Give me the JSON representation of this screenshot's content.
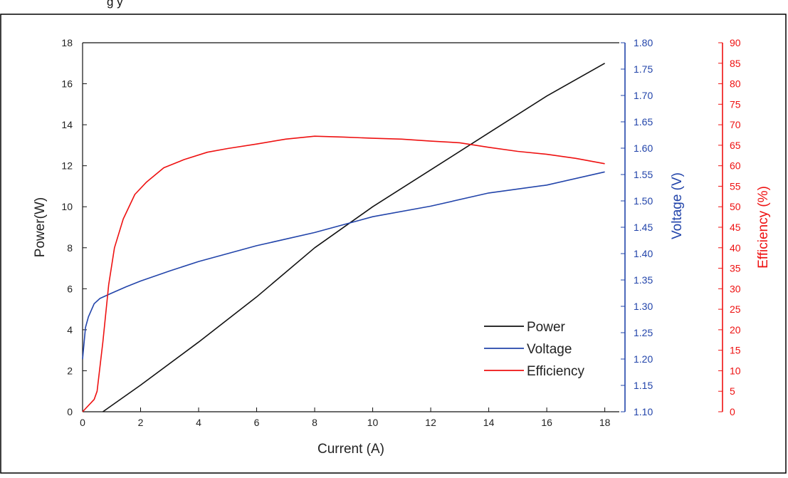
{
  "header_text": "g         y",
  "chart_data": {
    "type": "line",
    "title": "",
    "xlabel": "Current (A)",
    "xlim": [
      0,
      18.5
    ],
    "xticks": [
      0,
      2,
      4,
      6,
      8,
      10,
      12,
      14,
      16,
      18
    ],
    "axes": {
      "left": {
        "label": "Power(W)",
        "lim": [
          0,
          18
        ],
        "ticks": [
          0,
          2,
          4,
          6,
          8,
          10,
          12,
          14,
          16,
          18
        ],
        "color": "#111111"
      },
      "right1": {
        "label": "Voltage (V)",
        "lim": [
          1.1,
          1.8
        ],
        "ticks": [
          "1.10",
          "1.15",
          "1.20",
          "1.25",
          "1.30",
          "1.35",
          "1.40",
          "1.45",
          "1.50",
          "1.55",
          "1.60",
          "1.65",
          "1.70",
          "1.75",
          "1.80"
        ],
        "color": "#2244aa"
      },
      "right2": {
        "label": "Efficiency (%)",
        "lim": [
          0,
          90
        ],
        "ticks": [
          0,
          5,
          10,
          15,
          20,
          25,
          30,
          35,
          40,
          45,
          50,
          55,
          60,
          65,
          70,
          75,
          80,
          85,
          90
        ],
        "color": "#ee1111"
      }
    },
    "legend": {
      "position": "bottom-right"
    },
    "grid": false,
    "series": [
      {
        "name": "Power",
        "axis": "left",
        "color": "#111111",
        "x": [
          0.7,
          2,
          4,
          6,
          8,
          10,
          12,
          14,
          16,
          18
        ],
        "y": [
          0,
          1.3,
          3.4,
          5.6,
          8.0,
          10.0,
          11.8,
          13.6,
          15.4,
          17.0
        ]
      },
      {
        "name": "Voltage",
        "axis": "right1",
        "color": "#2244aa",
        "x": [
          0,
          0.1,
          0.2,
          0.4,
          0.6,
          1,
          1.5,
          2,
          3,
          4,
          5,
          6,
          8,
          10,
          12,
          14,
          16,
          18
        ],
        "y": [
          1.2,
          1.26,
          1.28,
          1.305,
          1.315,
          1.325,
          1.337,
          1.348,
          1.367,
          1.385,
          1.4,
          1.415,
          1.44,
          1.47,
          1.49,
          1.515,
          1.53,
          1.555
        ]
      },
      {
        "name": "Efficiency",
        "axis": "right2",
        "color": "#ee1111",
        "x": [
          0,
          0.4,
          0.5,
          0.7,
          0.9,
          1.1,
          1.4,
          1.8,
          2.2,
          2.8,
          3.5,
          4.3,
          5,
          6,
          7,
          8,
          9,
          10,
          11,
          12,
          13,
          14,
          15,
          16,
          17,
          18
        ],
        "y": [
          0,
          3,
          5,
          17,
          31,
          40,
          47,
          53,
          56,
          59.5,
          61.5,
          63.3,
          64.2,
          65.3,
          66.5,
          67.2,
          67.0,
          66.7,
          66.5,
          66.0,
          65.6,
          64.5,
          63.5,
          62.8,
          61.8,
          60.5
        ]
      }
    ]
  }
}
